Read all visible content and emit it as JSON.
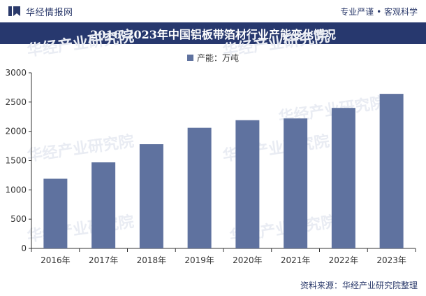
{
  "header": {
    "brand_name": "华经情报网",
    "tagline": "专业严谨 • 客观科学",
    "logo_icon": "bookmark-logo-icon"
  },
  "title": "2016-2023年中国铝板带箔材行业产能变化情况",
  "watermark": "华经产业研究院",
  "source": "资料来源：华经产业研究院整理",
  "colors": {
    "bar": "#5f729f",
    "title_bg": "#27386e",
    "brand": "#2b3a6b"
  },
  "chart_data": {
    "type": "bar",
    "title": "2016-2023年中国铝板带箔材行业产能变化情况",
    "categories": [
      "2016年",
      "2017年",
      "2018年",
      "2019年",
      "2020年",
      "2021年",
      "2022年",
      "2023年"
    ],
    "series": [
      {
        "name": "产能：万吨",
        "values": [
          1190,
          1470,
          1780,
          2060,
          2190,
          2220,
          2400,
          2640
        ]
      }
    ],
    "ylim": [
      0,
      3000
    ],
    "yticks": [
      0,
      500,
      1000,
      1500,
      2000,
      2500,
      3000
    ],
    "legend_position": "top-center",
    "grid": false
  }
}
